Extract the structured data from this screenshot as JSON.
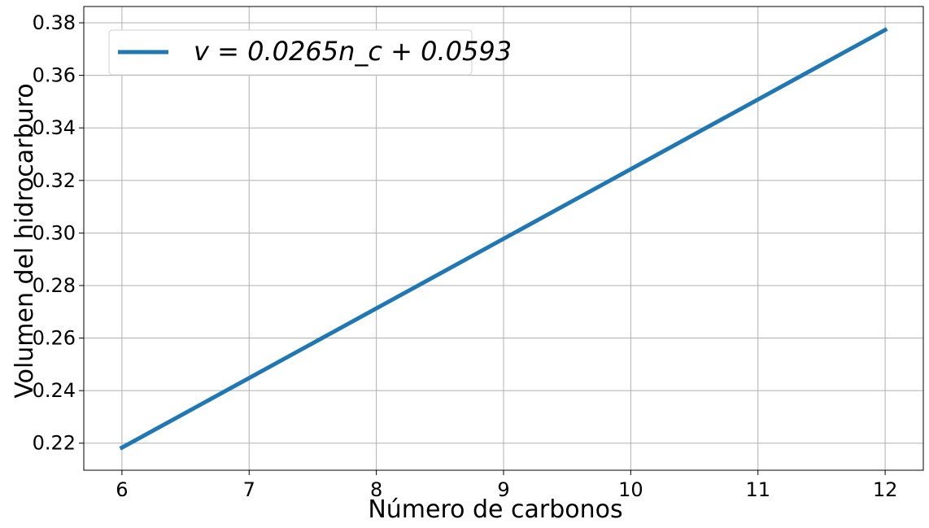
{
  "chart_data": {
    "type": "line",
    "title": "",
    "xlabel": "Número de carbonos",
    "ylabel": "Volumen del hidrocarburo",
    "xlim": [
      5.7,
      12.3
    ],
    "ylim": [
      0.2097,
      0.3862
    ],
    "xticks": [
      6,
      7,
      8,
      9,
      10,
      11,
      12
    ],
    "yticks": [
      0.22,
      0.24,
      0.26,
      0.28,
      0.3,
      0.32,
      0.34,
      0.36,
      0.38
    ],
    "xtick_labels": [
      "6",
      "7",
      "8",
      "9",
      "10",
      "11",
      "12"
    ],
    "ytick_labels": [
      "0.22",
      "0.24",
      "0.26",
      "0.28",
      "0.30",
      "0.32",
      "0.34",
      "0.36",
      "0.38"
    ],
    "grid": true,
    "legend_position": "top-left",
    "series": [
      {
        "name": "v = 0.0265n_c + 0.0593",
        "color": "#1f77b4",
        "x": [
          6,
          12
        ],
        "y": [
          0.2183,
          0.3773
        ]
      }
    ]
  }
}
